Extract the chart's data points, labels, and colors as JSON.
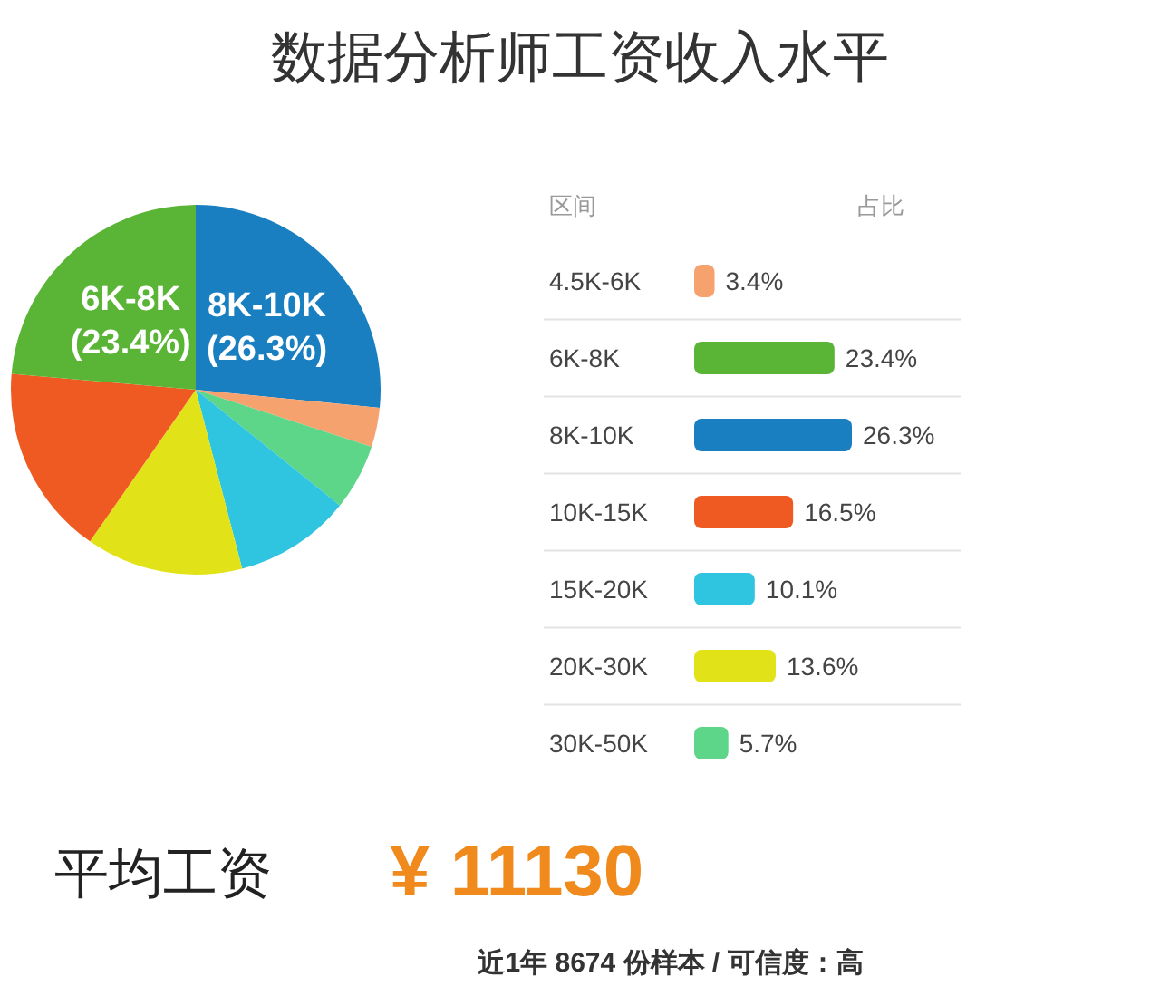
{
  "chart_data": [
    {
      "type": "pie",
      "title": "数据分析师工资收入水平",
      "categories": [
        "8K-10K",
        null,
        null,
        null,
        null,
        null,
        "6K-8K"
      ],
      "values": [
        26.3,
        3.4,
        5.7,
        10.1,
        13.6,
        16.5,
        23.4
      ],
      "colors": [
        "#1a7fc1",
        "#f5a26f",
        "#5dd68a",
        "#2fc4e0",
        "#e1e318",
        "#ee5a22",
        "#5ab537"
      ],
      "value_labels": [
        "(26.3%)",
        null,
        null,
        null,
        null,
        null,
        "(23.4%)"
      ],
      "annotations": [
        "平均工资",
        "¥ 11130",
        "近1年 8674 份样本 / 可信度：高"
      ]
    },
    {
      "type": "bar",
      "orientation": "horizontal",
      "ylabel": "区间",
      "xlabel": "占比",
      "categories": [
        "4.5K-6K",
        "6K-8K",
        "8K-10K",
        "10K-15K",
        "15K-20K",
        "20K-30K",
        "30K-50K"
      ],
      "values": [
        3.4,
        23.4,
        26.3,
        16.5,
        10.1,
        13.6,
        5.7
      ],
      "colors": [
        "#f5a26f",
        "#5ab537",
        "#1a7fc1",
        "#ee5a22",
        "#2fc4e0",
        "#e1e318",
        "#5dd68a"
      ],
      "value_labels": [
        "3.4%",
        "23.4%",
        "26.3%",
        "16.5%",
        "10.1%",
        "13.6%",
        "5.7%"
      ]
    }
  ]
}
